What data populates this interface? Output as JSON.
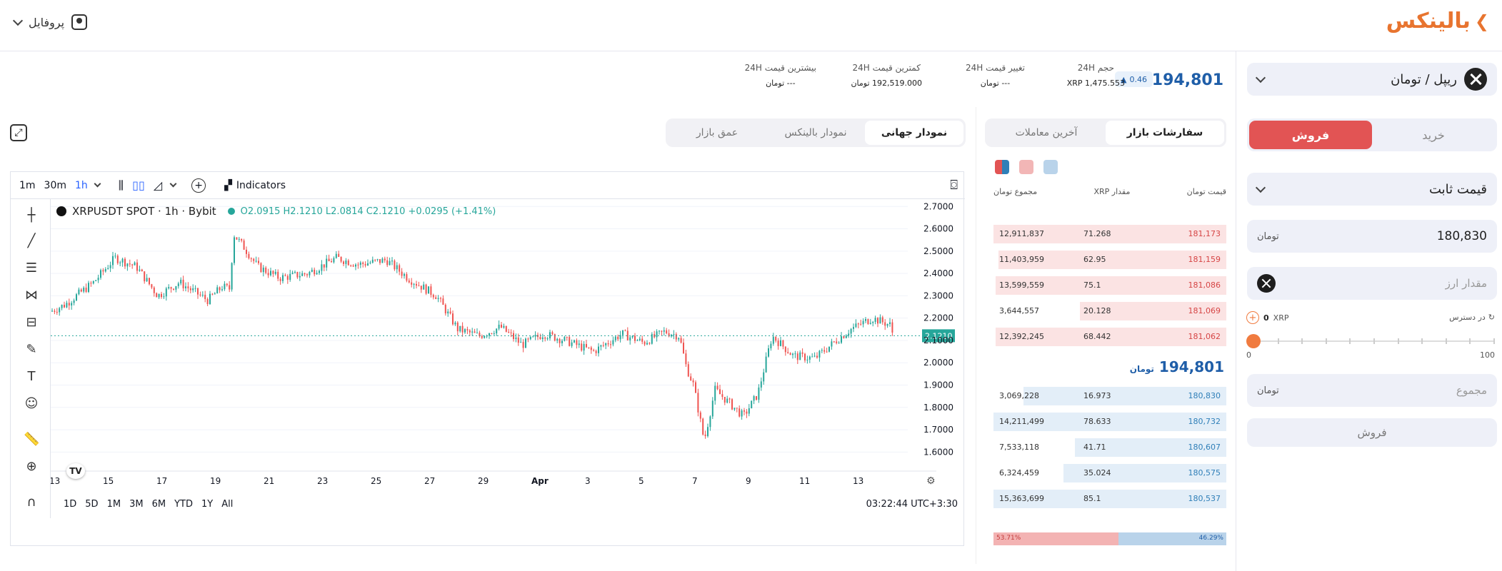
{
  "header": {
    "logo": "بالینکس",
    "profile_label": "پروفایل"
  },
  "ticker": {
    "price": "194,801",
    "toman": "تومان",
    "change_badge": "0.46",
    "stats": [
      {
        "label": "حجم 24H",
        "value": "1,475.553",
        "unit": "XRP"
      },
      {
        "label": "تغییر قیمت 24H",
        "value": "---",
        "unit": "تومان"
      },
      {
        "label": "کمترین قیمت 24H",
        "value": "192,519.000",
        "unit": "تومان"
      },
      {
        "label": "بیشترین قیمت 24H",
        "value": "---",
        "unit": "تومان"
      }
    ]
  },
  "trade": {
    "pair": "ریپل / تومان",
    "buy": "خرید",
    "sell": "فروش",
    "order_type": "قیمت ثابت",
    "price_value": "180,830",
    "amount_placeholder": "مقدار ارز",
    "available_label": "در دسترس",
    "available_value": "0",
    "available_unit": "XRP",
    "slider_min": "0",
    "slider_max": "100",
    "slider_value": 0,
    "total_placeholder": "مجموع",
    "submit": "فروش"
  },
  "orderbook": {
    "tabs": [
      "سفارشات بازار",
      "آخرین معاملات"
    ],
    "col_price": "قیمت",
    "col_amount": "مقدار XRP",
    "col_total": "مجموع",
    "asks": [
      {
        "price": "181,173",
        "amount": "71.268",
        "total": "12,911,837",
        "depth": 1.0
      },
      {
        "price": "181,159",
        "amount": "62.95",
        "total": "11,403,959",
        "depth": 0.98
      },
      {
        "price": "181,086",
        "amount": "75.1",
        "total": "13,599,559",
        "depth": 0.99
      },
      {
        "price": "181,069",
        "amount": "20.128",
        "total": "3,644,557",
        "depth": 0.63
      },
      {
        "price": "181,062",
        "amount": "68.442",
        "total": "12,392,245",
        "depth": 0.99
      }
    ],
    "mid_price": "194,801",
    "bids": [
      {
        "price": "180,830",
        "amount": "16.973",
        "total": "3,069,228",
        "depth": 0.87
      },
      {
        "price": "180,732",
        "amount": "78.633",
        "total": "14,211,499",
        "depth": 1.0
      },
      {
        "price": "180,607",
        "amount": "41.71",
        "total": "7,533,118",
        "depth": 0.65
      },
      {
        "price": "180,575",
        "amount": "35.024",
        "total": "6,324,459",
        "depth": 0.7
      },
      {
        "price": "180,537",
        "amount": "85.1",
        "total": "15,363,699",
        "depth": 1.0
      }
    ],
    "sell_ratio": "53.71%",
    "buy_ratio": "46.29%",
    "sell_ratio_value": 53.71
  },
  "chart_tabs": [
    "نمودار جهانی",
    "نمودار بالینکس",
    "عمق بازار"
  ],
  "tv": {
    "intervals": [
      "1m",
      "30m",
      "1h"
    ],
    "indicators": "Indicators",
    "symbol": "XRPUSDT SPOT · 1h · Bybit",
    "ohlc": "O2.0915 H2.1210 L2.0814 C2.1210 +0.0295 (+1.41%)",
    "last": "2.1210",
    "yticks": [
      "2.7000",
      "2.6000",
      "2.5000",
      "2.4000",
      "2.3000",
      "2.2000",
      "2.1000",
      "2.0000",
      "1.9000",
      "1.8000",
      "1.7000",
      "1.6000"
    ],
    "xticks": [
      "13",
      "15",
      "17",
      "19",
      "21",
      "23",
      "25",
      "27",
      "29",
      "Apr",
      "3",
      "5",
      "7",
      "9",
      "11",
      "13"
    ],
    "ranges": [
      "1D",
      "5D",
      "1M",
      "3M",
      "6M",
      "YTD",
      "1Y",
      "All"
    ],
    "clock": "03:22:44 UTC+3:30"
  },
  "colors": {
    "sell": "#e25454",
    "up": "#26a69a",
    "down": "#ef5350",
    "accent": "#f07b3f"
  }
}
